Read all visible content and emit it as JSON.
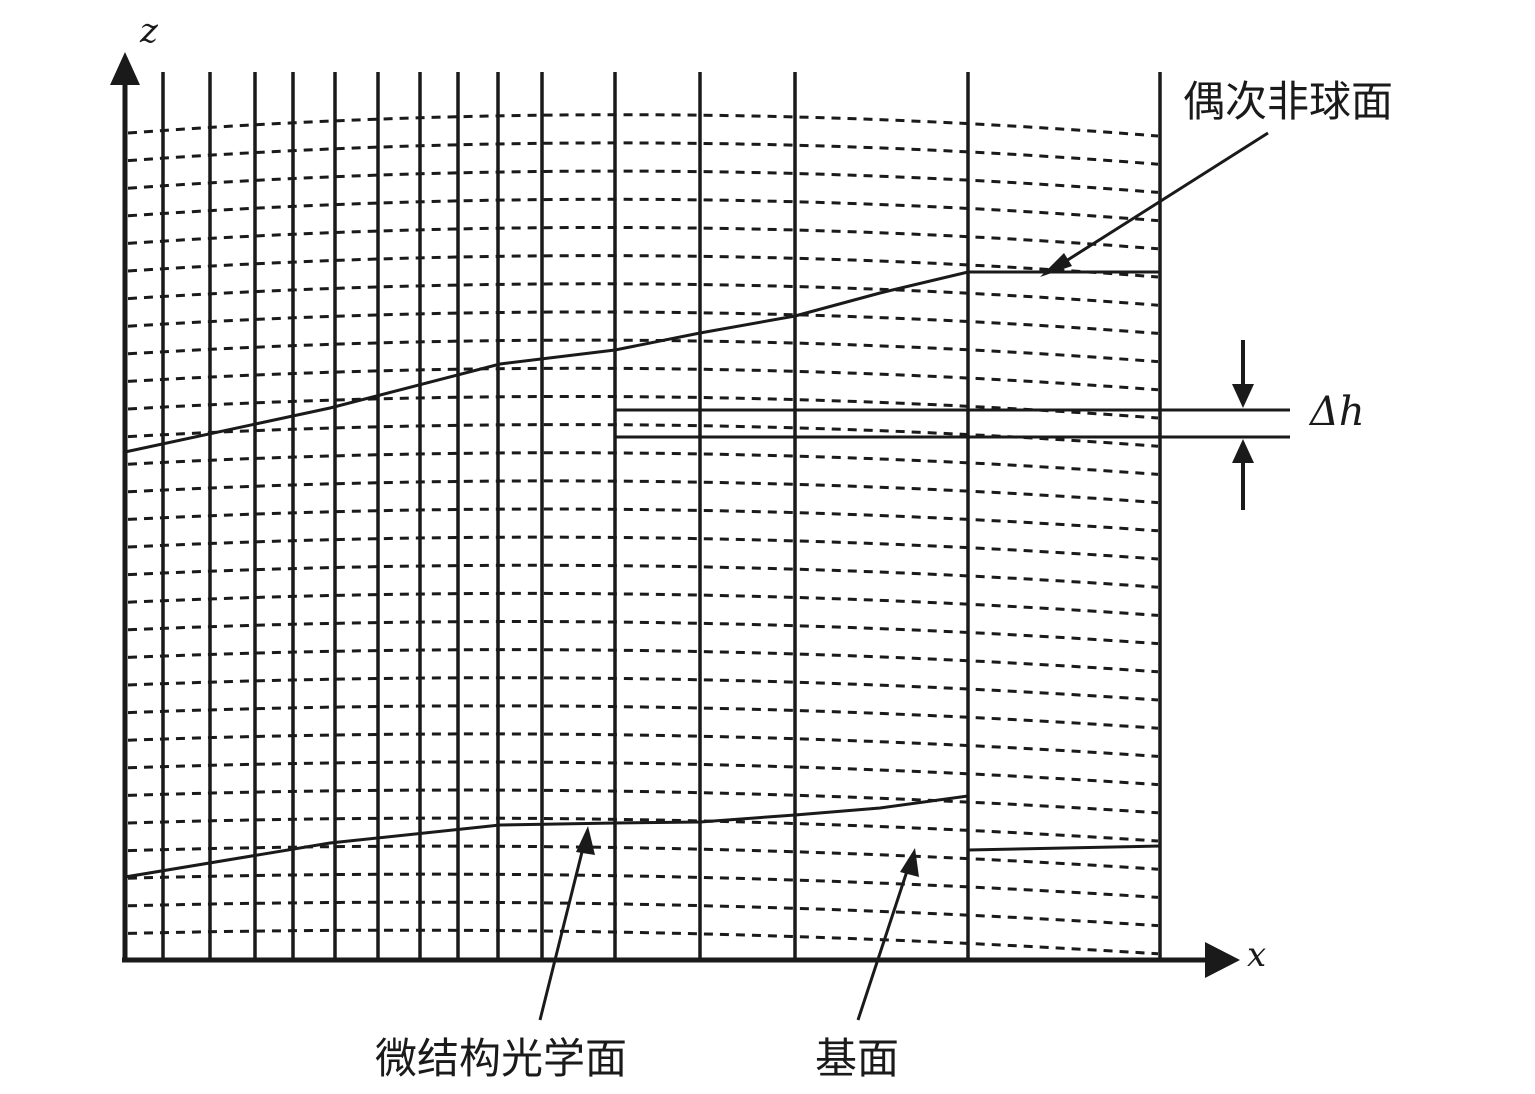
{
  "axes": {
    "x_label": "x",
    "z_label": "z"
  },
  "labels": {
    "even_asphere": "偶次非球面",
    "delta_h": "Δh",
    "microstructure_surface": "微结构光学面",
    "base_surface": "基面"
  },
  "colors": {
    "ink": "#1a1a1a",
    "background": "#ffffff"
  }
}
